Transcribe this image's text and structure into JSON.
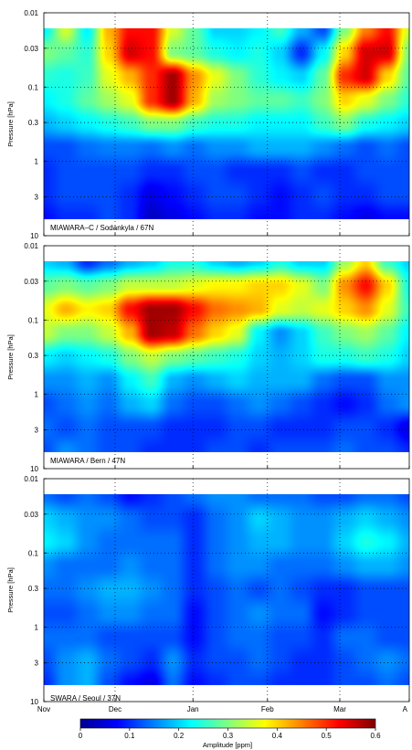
{
  "chart_data": {
    "type": "heatmap",
    "title": "",
    "colormap": "jet",
    "colorbar": {
      "label": "Amplitude [ppm]",
      "range": [
        0,
        0.6
      ],
      "ticks": [
        "0",
        "0.1",
        "0.2",
        "0.3",
        "0.4",
        "0.5",
        "0.6"
      ],
      "placement": "bottom"
    },
    "x_axis": {
      "label": "",
      "tick_labels": [
        "Nov",
        "Dec",
        "Jan",
        "Feb",
        "Mar",
        "A"
      ],
      "grid": true
    },
    "y_axis": {
      "label": "Pressure [hPa]",
      "scale": "log",
      "reversed": true,
      "range_hpa": [
        10,
        0.01
      ],
      "tick_labels": [
        "0.01",
        "0.03",
        "0.1",
        "0.3",
        "1",
        "3",
        "10"
      ],
      "grid": true
    },
    "panels": [
      {
        "label": "MIAWARA–C / Sodankyla / 67N",
        "cells": [
          [
            0.22,
            0.35,
            0.22,
            0.42,
            0.52,
            0.52,
            0.35,
            0.28,
            0.2,
            0.2,
            0.22,
            0.26,
            0.18,
            0.12,
            0.3,
            0.45,
            0.52,
            0.35
          ],
          [
            0.3,
            0.28,
            0.25,
            0.4,
            0.55,
            0.52,
            0.3,
            0.28,
            0.24,
            0.22,
            0.24,
            0.2,
            0.1,
            0.22,
            0.4,
            0.55,
            0.55,
            0.3
          ],
          [
            0.25,
            0.24,
            0.26,
            0.36,
            0.42,
            0.5,
            0.58,
            0.44,
            0.36,
            0.3,
            0.25,
            0.22,
            0.2,
            0.28,
            0.5,
            0.55,
            0.4,
            0.28
          ],
          [
            0.22,
            0.24,
            0.28,
            0.32,
            0.36,
            0.5,
            0.58,
            0.42,
            0.32,
            0.3,
            0.28,
            0.28,
            0.26,
            0.3,
            0.4,
            0.36,
            0.3,
            0.25
          ],
          [
            0.18,
            0.2,
            0.22,
            0.24,
            0.26,
            0.3,
            0.3,
            0.26,
            0.24,
            0.24,
            0.22,
            0.22,
            0.22,
            0.26,
            0.3,
            0.24,
            0.22,
            0.2
          ],
          [
            0.12,
            0.12,
            0.14,
            0.15,
            0.15,
            0.14,
            0.16,
            0.14,
            0.16,
            0.16,
            0.18,
            0.18,
            0.18,
            0.16,
            0.14,
            0.12,
            0.14,
            0.12
          ],
          [
            0.1,
            0.12,
            0.12,
            0.12,
            0.12,
            0.1,
            0.1,
            0.12,
            0.12,
            0.1,
            0.1,
            0.1,
            0.12,
            0.1,
            0.1,
            0.12,
            0.12,
            0.12
          ],
          [
            0.1,
            0.12,
            0.12,
            0.12,
            0.1,
            0.06,
            0.08,
            0.1,
            0.12,
            0.12,
            0.1,
            0.08,
            0.1,
            0.12,
            0.1,
            0.1,
            0.12,
            0.12
          ],
          [
            0.08,
            0.1,
            0.1,
            0.12,
            0.1,
            0.04,
            0.06,
            0.08,
            0.1,
            0.1,
            0.08,
            0.08,
            0.1,
            0.1,
            0.08,
            0.06,
            0.08,
            0.08
          ]
        ]
      },
      {
        "label": "MIAWARA / Bern / 47N",
        "cells": [
          [
            0.2,
            0.18,
            0.1,
            0.14,
            0.18,
            0.2,
            0.24,
            0.24,
            0.2,
            0.18,
            0.2,
            0.24,
            0.2,
            0.2,
            0.32,
            0.4,
            0.26,
            0.2
          ],
          [
            0.28,
            0.3,
            0.28,
            0.3,
            0.34,
            0.34,
            0.34,
            0.36,
            0.38,
            0.38,
            0.4,
            0.4,
            0.36,
            0.3,
            0.44,
            0.52,
            0.4,
            0.24
          ],
          [
            0.36,
            0.42,
            0.38,
            0.4,
            0.52,
            0.58,
            0.58,
            0.52,
            0.46,
            0.44,
            0.42,
            0.36,
            0.34,
            0.36,
            0.4,
            0.44,
            0.36,
            0.26
          ],
          [
            0.34,
            0.3,
            0.3,
            0.34,
            0.42,
            0.58,
            0.56,
            0.46,
            0.4,
            0.36,
            0.22,
            0.16,
            0.2,
            0.26,
            0.3,
            0.32,
            0.28,
            0.22
          ],
          [
            0.22,
            0.2,
            0.22,
            0.24,
            0.3,
            0.34,
            0.3,
            0.28,
            0.26,
            0.24,
            0.2,
            0.18,
            0.2,
            0.24,
            0.24,
            0.26,
            0.24,
            0.2
          ],
          [
            0.16,
            0.16,
            0.18,
            0.16,
            0.22,
            0.26,
            0.18,
            0.16,
            0.18,
            0.2,
            0.18,
            0.18,
            0.18,
            0.14,
            0.12,
            0.12,
            0.16,
            0.16
          ],
          [
            0.12,
            0.14,
            0.16,
            0.14,
            0.18,
            0.2,
            0.14,
            0.12,
            0.12,
            0.14,
            0.16,
            0.14,
            0.12,
            0.1,
            0.08,
            0.1,
            0.14,
            0.16
          ],
          [
            0.14,
            0.12,
            0.14,
            0.12,
            0.12,
            0.12,
            0.1,
            0.1,
            0.1,
            0.12,
            0.12,
            0.1,
            0.1,
            0.1,
            0.12,
            0.12,
            0.1,
            0.06
          ],
          [
            0.12,
            0.16,
            0.14,
            0.12,
            0.12,
            0.1,
            0.1,
            0.1,
            0.12,
            0.12,
            0.1,
            0.12,
            0.12,
            0.12,
            0.14,
            0.12,
            0.12,
            0.1
          ]
        ]
      },
      {
        "label": "SWARA / Seoul / 37N",
        "cells": [
          [
            0.14,
            0.12,
            0.14,
            0.12,
            0.08,
            0.1,
            0.12,
            0.14,
            0.16,
            0.16,
            0.14,
            0.14,
            0.14,
            0.12,
            0.12,
            0.14,
            0.14,
            0.12
          ],
          [
            0.2,
            0.18,
            0.16,
            0.16,
            0.14,
            0.12,
            0.12,
            0.1,
            0.14,
            0.16,
            0.2,
            0.18,
            0.16,
            0.16,
            0.18,
            0.2,
            0.18,
            0.16
          ],
          [
            0.22,
            0.2,
            0.16,
            0.14,
            0.14,
            0.14,
            0.14,
            0.1,
            0.14,
            0.16,
            0.18,
            0.18,
            0.16,
            0.16,
            0.2,
            0.24,
            0.22,
            0.18
          ],
          [
            0.16,
            0.14,
            0.14,
            0.14,
            0.16,
            0.14,
            0.14,
            0.1,
            0.14,
            0.16,
            0.16,
            0.14,
            0.14,
            0.14,
            0.16,
            0.18,
            0.18,
            0.16
          ],
          [
            0.14,
            0.14,
            0.16,
            0.18,
            0.18,
            0.16,
            0.14,
            0.1,
            0.12,
            0.14,
            0.12,
            0.14,
            0.12,
            0.1,
            0.1,
            0.12,
            0.12,
            0.12
          ],
          [
            0.12,
            0.12,
            0.14,
            0.16,
            0.16,
            0.14,
            0.14,
            0.08,
            0.12,
            0.14,
            0.16,
            0.14,
            0.14,
            0.08,
            0.1,
            0.12,
            0.12,
            0.12
          ],
          [
            0.14,
            0.14,
            0.14,
            0.12,
            0.12,
            0.12,
            0.12,
            0.08,
            0.12,
            0.14,
            0.14,
            0.12,
            0.12,
            0.1,
            0.14,
            0.14,
            0.12,
            0.12
          ],
          [
            0.12,
            0.16,
            0.18,
            0.14,
            0.12,
            0.1,
            0.16,
            0.1,
            0.12,
            0.12,
            0.14,
            0.12,
            0.1,
            0.1,
            0.12,
            0.14,
            0.16,
            0.14
          ],
          [
            0.1,
            0.16,
            0.18,
            0.12,
            0.08,
            0.06,
            0.14,
            0.08,
            0.1,
            0.12,
            0.12,
            0.1,
            0.1,
            0.1,
            0.12,
            0.12,
            0.14,
            0.12
          ]
        ]
      }
    ]
  }
}
